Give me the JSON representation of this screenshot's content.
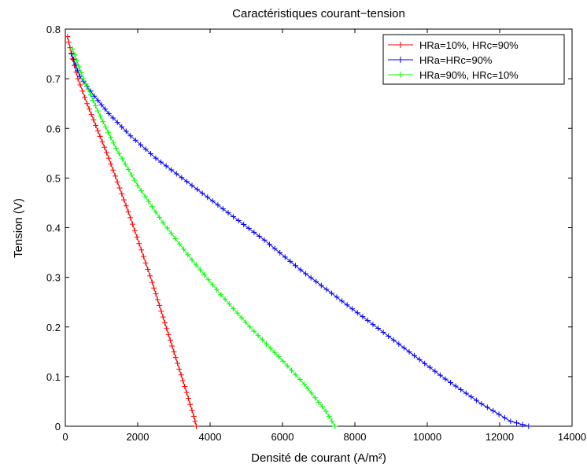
{
  "chart_data": {
    "type": "line",
    "title": "Caractéristiques courant−tension",
    "xlabel": "Densité de courant (A/m²)",
    "ylabel": "Tension (V)",
    "xlim": [
      0,
      14000
    ],
    "ylim": [
      0,
      0.8
    ],
    "xticks": [
      0,
      2000,
      4000,
      6000,
      8000,
      10000,
      12000,
      14000
    ],
    "yticks": [
      0,
      0.1,
      0.2,
      0.3,
      0.4,
      0.5,
      0.6,
      0.7,
      0.8
    ],
    "xtick_labels": [
      "0",
      "2000",
      "4000",
      "6000",
      "8000",
      "10000",
      "12000",
      "14000"
    ],
    "ytick_labels": [
      "0",
      "0.1",
      "0.2",
      "0.3",
      "0.4",
      "0.5",
      "0.6",
      "0.7",
      "0.8"
    ],
    "grid": false,
    "legend_position": "top-right",
    "marker": "+",
    "series": [
      {
        "name": "HRa=10%,  HRc=90%",
        "color": "#ff0000",
        "points": [
          [
            60,
            0.785
          ],
          [
            200,
            0.74
          ],
          [
            350,
            0.7
          ],
          [
            600,
            0.65
          ],
          [
            900,
            0.595
          ],
          [
            1200,
            0.54
          ],
          [
            1500,
            0.48
          ],
          [
            1800,
            0.42
          ],
          [
            2100,
            0.355
          ],
          [
            2400,
            0.29
          ],
          [
            2700,
            0.22
          ],
          [
            3000,
            0.15
          ],
          [
            3300,
            0.08
          ],
          [
            3550,
            0.02
          ],
          [
            3620,
            0.0
          ]
        ]
      },
      {
        "name": "HRa=HRc=90%",
        "color": "#0000ff",
        "points": [
          [
            170,
            0.75
          ],
          [
            400,
            0.705
          ],
          [
            800,
            0.665
          ],
          [
            1200,
            0.63
          ],
          [
            1800,
            0.585
          ],
          [
            2500,
            0.54
          ],
          [
            3500,
            0.485
          ],
          [
            4500,
            0.43
          ],
          [
            5500,
            0.375
          ],
          [
            6500,
            0.315
          ],
          [
            7500,
            0.26
          ],
          [
            8500,
            0.205
          ],
          [
            9500,
            0.15
          ],
          [
            10500,
            0.095
          ],
          [
            11500,
            0.045
          ],
          [
            12300,
            0.01
          ],
          [
            12800,
            0.0
          ]
        ]
      },
      {
        "name": "HRa=90%,  HRc=10%",
        "color": "#00ff00",
        "points": [
          [
            200,
            0.76
          ],
          [
            500,
            0.7
          ],
          [
            900,
            0.635
          ],
          [
            1400,
            0.56
          ],
          [
            2000,
            0.485
          ],
          [
            2700,
            0.41
          ],
          [
            3500,
            0.335
          ],
          [
            4300,
            0.265
          ],
          [
            5100,
            0.2
          ],
          [
            5900,
            0.14
          ],
          [
            6600,
            0.085
          ],
          [
            7200,
            0.03
          ],
          [
            7450,
            0.0
          ]
        ]
      }
    ]
  }
}
